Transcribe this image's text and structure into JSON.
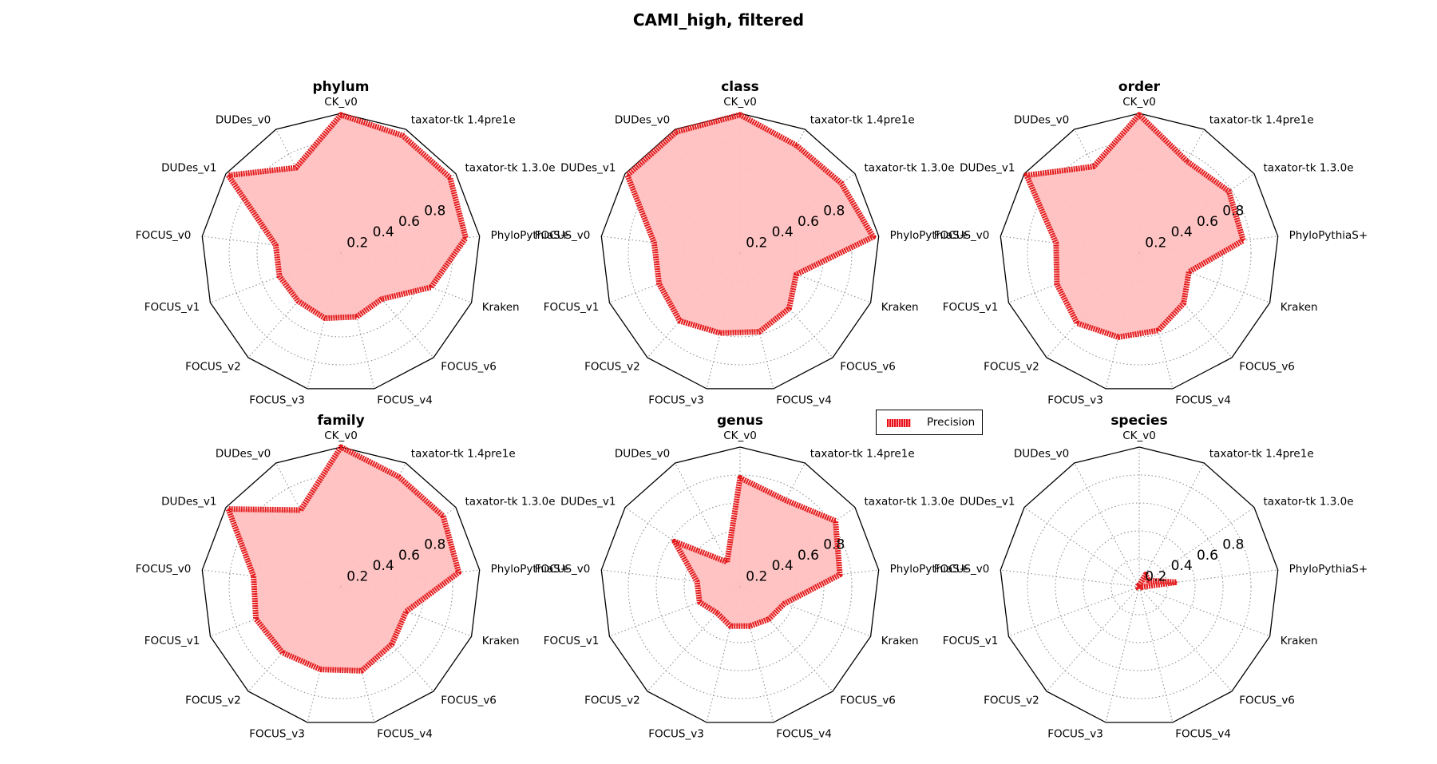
{
  "title": "CAMI_high, filtered",
  "legend": {
    "label": "Precision",
    "placement": "center"
  },
  "colors": {
    "fill": "#ffc0c0",
    "line": "#e31a1c",
    "grid": "#888888",
    "frame": "#000000"
  },
  "chart_data": {
    "type": "radar",
    "categories": [
      "CK_v0",
      "taxator-tk 1.4pre1e",
      "taxator-tk 1.3.0e",
      "PhyloPythiaS+",
      "Kraken",
      "FOCUS_v6",
      "FOCUS_v4",
      "FOCUS_v3",
      "FOCUS_v2",
      "FOCUS_v1",
      "FOCUS_v0",
      "DUDes_v1",
      "DUDes_v0"
    ],
    "rlim": [
      0,
      1
    ],
    "rticks": [
      0.2,
      0.4,
      0.6,
      0.8
    ],
    "rtick_labels": [
      "0.2",
      "0.4",
      "0.6",
      "0.8"
    ],
    "grid": true,
    "panels": [
      {
        "rank": "phylum",
        "series": [
          {
            "name": "Precision",
            "values": [
              0.99,
              0.95,
              0.95,
              0.9,
              0.69,
              0.44,
              0.47,
              0.48,
              0.46,
              0.47,
              0.47,
              0.98,
              0.69
            ]
          }
        ]
      },
      {
        "rank": "class",
        "series": [
          {
            "name": "Precision",
            "values": [
              0.99,
              0.87,
              0.88,
              0.96,
              0.43,
              0.53,
              0.58,
              0.59,
              0.65,
              0.62,
              0.62,
              0.98,
              0.98
            ]
          }
        ]
      },
      {
        "rank": "order",
        "series": [
          {
            "name": "Precision",
            "values": [
              0.99,
              0.74,
              0.78,
              0.75,
              0.38,
              0.48,
              0.57,
              0.62,
              0.67,
              0.63,
              0.6,
              0.98,
              0.7
            ]
          }
        ]
      },
      {
        "rank": "family",
        "series": [
          {
            "name": "Precision",
            "values": [
              1.0,
              0.89,
              0.89,
              0.85,
              0.5,
              0.55,
              0.62,
              0.61,
              0.63,
              0.65,
              0.63,
              0.98,
              0.62
            ]
          }
        ]
      },
      {
        "rank": "genus",
        "series": [
          {
            "name": "Precision",
            "values": [
              0.78,
              0.7,
              0.83,
              0.72,
              0.34,
              0.31,
              0.29,
              0.29,
              0.25,
              0.31,
              0.31,
              0.57,
              0.2
            ]
          }
        ]
      },
      {
        "rank": "species",
        "series": [
          {
            "name": "Precision",
            "values": [
              0.01,
              0.1,
              0.08,
              0.27,
              0.01,
              0.01,
              0.01,
              0.01,
              0.01,
              0.01,
              0.01,
              0.01,
              0.01
            ]
          }
        ]
      }
    ]
  }
}
